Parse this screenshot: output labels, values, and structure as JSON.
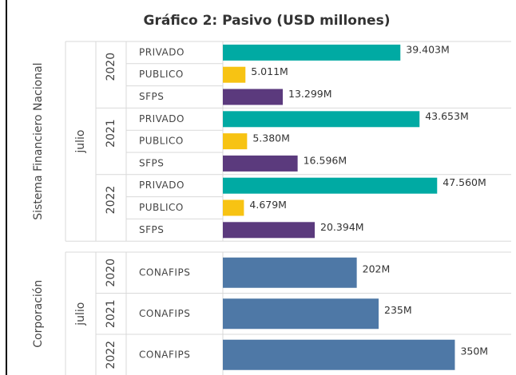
{
  "title": "Gráfico 2: Pasivo (USD millones)",
  "chart_data": [
    {
      "type": "bar",
      "orientation": "horizontal",
      "row_label": "Sistema Financiero Nacional",
      "month": "julio",
      "years": [
        "2020",
        "2021",
        "2022"
      ],
      "categories": [
        "PRIVADO",
        "PUBLICO",
        "SFPS"
      ],
      "colors": [
        "#00aaa3",
        "#f7c313",
        "#5b3a7d"
      ],
      "values": [
        [
          39403,
          5011,
          13299
        ],
        [
          43653,
          5380,
          16596
        ],
        [
          47560,
          4679,
          20394
        ]
      ],
      "value_labels": [
        [
          "39.403M",
          "5.011M",
          "13.299M"
        ],
        [
          "43.653M",
          "5.380M",
          "16.596M"
        ],
        [
          "47.560M",
          "4.679M",
          "20.394M"
        ]
      ],
      "xlim": [
        0,
        64000
      ]
    },
    {
      "type": "bar",
      "orientation": "horizontal",
      "row_label": "Corporación",
      "month": "julio",
      "years": [
        "2020",
        "2021",
        "2022"
      ],
      "categories": [
        "CONAFIPS"
      ],
      "colors": [
        "#4e78a6"
      ],
      "values": [
        [
          202
        ],
        [
          235
        ],
        [
          350
        ]
      ],
      "value_labels": [
        [
          "202M"
        ],
        [
          "235M"
        ],
        [
          "350M"
        ]
      ],
      "xlim": [
        0,
        435
      ]
    }
  ]
}
